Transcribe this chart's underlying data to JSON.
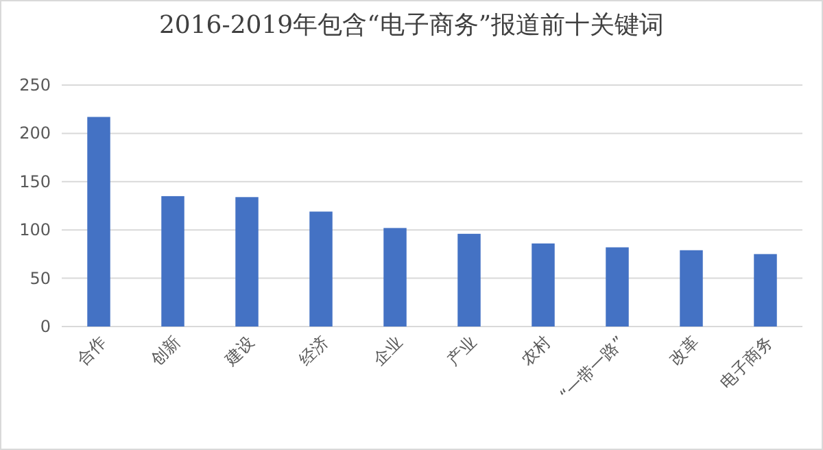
{
  "chart_data": {
    "type": "bar",
    "title": "2016-2019年包含“电子商务”报道前十关键词",
    "categories": [
      "合作",
      "创新",
      "建设",
      "经济",
      "企业",
      "产业",
      "农村",
      "“一带一路”",
      "改革",
      "电子商务"
    ],
    "values": [
      217,
      135,
      134,
      119,
      102,
      96,
      86,
      82,
      79,
      75
    ],
    "color": "#4472c4",
    "ylim": [
      0,
      250
    ],
    "yticks": [
      0,
      50,
      100,
      150,
      200,
      250
    ],
    "grid": "y"
  }
}
